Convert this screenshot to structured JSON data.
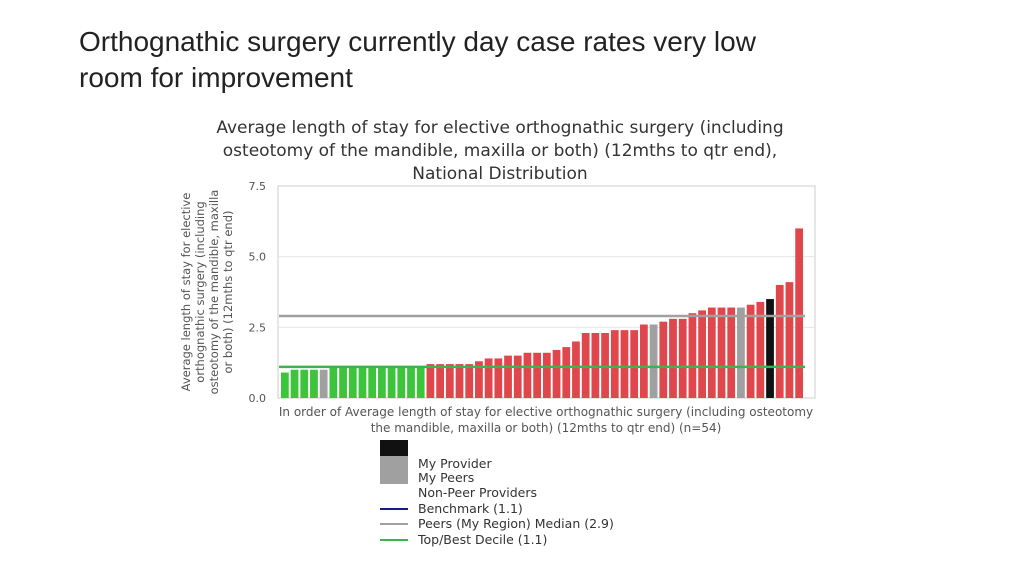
{
  "slide": {
    "title_line1": "Orthognathic surgery currently day case rates very low",
    "title_line2": "room for improvement"
  },
  "chart_data": {
    "type": "bar",
    "title": [
      "Average length of stay for elective orthognathic surgery (including",
      "osteotomy of the mandible, maxilla or both) (12mths to qtr end),",
      "National Distribution"
    ],
    "ylabel": [
      "Average length of stay for elective",
      "orthognathic surgery (including",
      "osteotomy of the mandible, maxilla",
      "or both) (12mths to qtr end)"
    ],
    "xlabel": [
      "In order of Average length of stay for elective orthognathic surgery (including osteotomy",
      "the mandible, maxilla or both) (12mths to qtr end) (n=54)"
    ],
    "ylim": [
      0,
      7.5
    ],
    "yticks": [
      "0.0",
      "2.5",
      "5.0",
      "7.5"
    ],
    "values": [
      0.9,
      1.0,
      1.0,
      1.0,
      1.0,
      1.1,
      1.1,
      1.1,
      1.1,
      1.1,
      1.1,
      1.1,
      1.1,
      1.1,
      1.1,
      1.2,
      1.2,
      1.2,
      1.2,
      1.2,
      1.3,
      1.4,
      1.4,
      1.5,
      1.5,
      1.6,
      1.6,
      1.6,
      1.7,
      1.8,
      2.0,
      2.3,
      2.3,
      2.3,
      2.4,
      2.4,
      2.4,
      2.6,
      2.6,
      2.7,
      2.8,
      2.8,
      3.0,
      3.1,
      3.2,
      3.2,
      3.2,
      3.2,
      3.3,
      3.4,
      3.5,
      4.0,
      4.1,
      6.0
    ],
    "categories_series": [
      "top",
      "top",
      "top",
      "top",
      "peer",
      "top",
      "top",
      "top",
      "top",
      "top",
      "top",
      "top",
      "top",
      "top",
      "top",
      "nonpeer",
      "nonpeer",
      "nonpeer",
      "nonpeer",
      "nonpeer",
      "nonpeer",
      "nonpeer",
      "nonpeer",
      "nonpeer",
      "nonpeer",
      "nonpeer",
      "nonpeer",
      "nonpeer",
      "nonpeer",
      "nonpeer",
      "nonpeer",
      "nonpeer",
      "nonpeer",
      "nonpeer",
      "nonpeer",
      "nonpeer",
      "nonpeer",
      "nonpeer",
      "peer",
      "nonpeer",
      "nonpeer",
      "nonpeer",
      "nonpeer",
      "nonpeer",
      "nonpeer",
      "nonpeer",
      "nonpeer",
      "peer",
      "nonpeer",
      "nonpeer",
      "provider",
      "nonpeer",
      "nonpeer",
      "nonpeer"
    ],
    "reference_lines": [
      {
        "name": "Peers (My Region) Median",
        "value": 2.9,
        "color": "#a0a0a0"
      },
      {
        "name": "Top/Best Decile",
        "value": 1.1,
        "color": "#3cb44b"
      }
    ],
    "colors": {
      "top": "#3cc43c",
      "nonpeer": "#e0474c",
      "peer": "#a0a0a0",
      "provider": "#111111",
      "grid": "#e6e6e6",
      "axis": "#cccccc",
      "benchmark": "#1a1a8c"
    },
    "legend": [
      {
        "label": "My Provider",
        "kind": "box",
        "color": "#111111"
      },
      {
        "label": "My Peers",
        "kind": "box",
        "color": "#a0a0a0"
      },
      {
        "label": "Non-Peer Providers",
        "kind": "none",
        "color": "#e0474c"
      },
      {
        "label": "Benchmark (1.1)",
        "kind": "line",
        "color": "#1a1a8c"
      },
      {
        "label": "Peers (My Region) Median (2.9)",
        "kind": "line",
        "color": "#a0a0a0"
      },
      {
        "label": "Top/Best Decile (1.1)",
        "kind": "line",
        "color": "#3cb44b"
      }
    ]
  }
}
